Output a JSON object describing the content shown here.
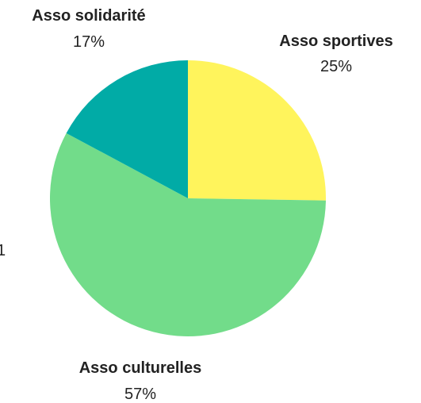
{
  "chart_data": {
    "type": "pie",
    "slices": [
      {
        "name": "Asso sportives",
        "value": 25,
        "label": "25%",
        "color": "#fff45c"
      },
      {
        "name": "Asso culturelles",
        "value": 57,
        "label": "57%",
        "color": "#72dc8a"
      },
      {
        "name": "Asso solidarité",
        "value": 17,
        "label": "17%",
        "color": "#01aba6"
      }
    ],
    "start_angle_deg": 0,
    "direction": "clockwise",
    "legend": "none",
    "edge_glyph": "1"
  }
}
